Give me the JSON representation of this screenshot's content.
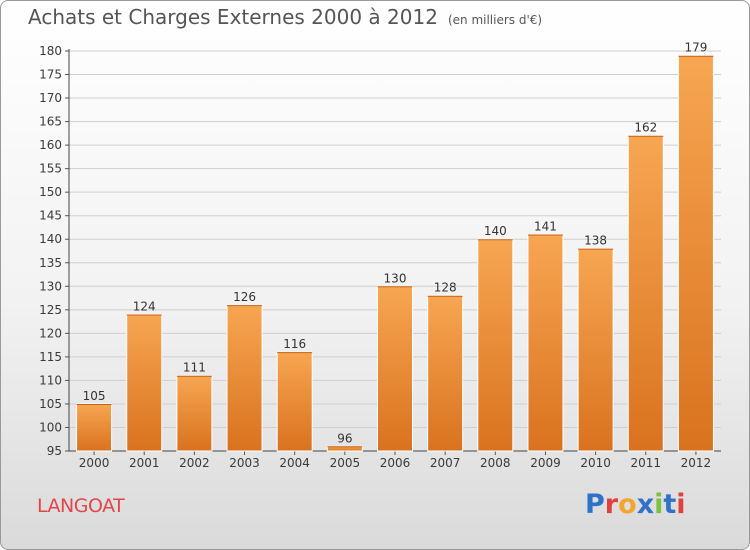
{
  "chart_data": {
    "type": "bar",
    "title": "Achats et Charges Externes 2000 à 2012",
    "unit": "(en milliers d'€)",
    "categories": [
      "2000",
      "2001",
      "2002",
      "2003",
      "2004",
      "2005",
      "2006",
      "2007",
      "2008",
      "2009",
      "2010",
      "2011",
      "2012"
    ],
    "values": [
      105,
      124,
      111,
      126,
      116,
      96,
      130,
      128,
      140,
      141,
      138,
      162,
      179
    ],
    "value_labels": [
      "105",
      "124",
      "111",
      "126",
      "116",
      "96",
      "130",
      "128",
      "140",
      "141",
      "138",
      "162",
      "179"
    ],
    "ylim": [
      95,
      180
    ],
    "yticks": [
      "95",
      "100",
      "105",
      "110",
      "115",
      "120",
      "125",
      "130",
      "135",
      "140",
      "145",
      "150",
      "155",
      "160",
      "165",
      "170",
      "175",
      "180"
    ],
    "grid": true,
    "bar_color": "#f39a45",
    "bar_color_dark": "#d9721f"
  },
  "footer": {
    "commune": "LANGOAT",
    "logo_text": "Proxiti",
    "logo_colors": [
      "#2f73c9",
      "#e1403c",
      "#f3a531",
      "#2f73c9",
      "#7cc242",
      "#2f73c9",
      "#e1403c"
    ]
  }
}
